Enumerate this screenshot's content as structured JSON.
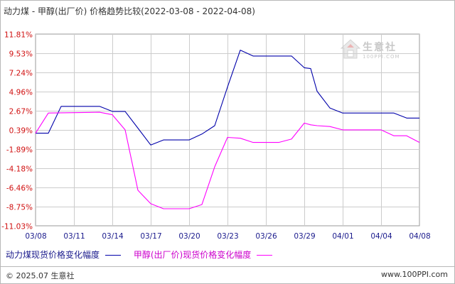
{
  "title": "动力煤 - 甲醇(出厂价) 价格趋势比较(2022-03-08 - 2022-04-08)",
  "colors": {
    "series1": "#0000aa",
    "series2": "#ff00ff",
    "ytick": "#d01010",
    "xtick": "#1a1a8c",
    "grid": "#cccccc"
  },
  "watermark": {
    "brand": "生意社",
    "sub": "100PPI.COM"
  },
  "footer": {
    "copyright": "© 2025.07 生意社",
    "site": "www.100PPI.com"
  },
  "chart_data": {
    "type": "line",
    "title": "动力煤 - 甲醇(出厂价) 价格趋势比较(2022-03-08 - 2022-04-08)",
    "xlabel": "",
    "ylabel": "",
    "ylim": [
      -11.03,
      11.81
    ],
    "yticks": [
      "11.81%",
      "9.53%",
      "7.24%",
      "4.96%",
      "2.67%",
      "0.39%",
      "-1.89%",
      "-4.18%",
      "-6.46%",
      "-8.75%",
      "-11.03%"
    ],
    "yticks_values": [
      11.81,
      9.53,
      7.24,
      4.96,
      2.67,
      0.39,
      -1.89,
      -4.18,
      -6.46,
      -8.75,
      -11.03
    ],
    "xticks": [
      "03/08",
      "03/11",
      "03/14",
      "03/17",
      "03/20",
      "03/23",
      "03/26",
      "03/29",
      "04/01",
      "04/04",
      "04/08"
    ],
    "xticks_values": [
      0,
      3,
      6,
      9,
      12,
      15,
      18,
      21,
      24,
      27,
      30
    ],
    "xlim": [
      0,
      30
    ],
    "grid": true,
    "legend_position": "bottom",
    "series": [
      {
        "name": "动力煤现货价格变化幅度",
        "points": [
          [
            0,
            0
          ],
          [
            1,
            0
          ],
          [
            2,
            3.2
          ],
          [
            5,
            3.2
          ],
          [
            6,
            2.6
          ],
          [
            7,
            2.6
          ],
          [
            8,
            0.6
          ],
          [
            9,
            -1.4
          ],
          [
            10,
            -0.8
          ],
          [
            12,
            -0.8
          ],
          [
            13,
            -0.1
          ],
          [
            14,
            0.9
          ],
          [
            15,
            5.5
          ],
          [
            16,
            9.9
          ],
          [
            17,
            9.2
          ],
          [
            20,
            9.2
          ],
          [
            21,
            7.8
          ],
          [
            21.5,
            7.7
          ],
          [
            22,
            5.0
          ],
          [
            23,
            3.0
          ],
          [
            24,
            2.4
          ],
          [
            28,
            2.4
          ],
          [
            29,
            1.8
          ],
          [
            30,
            1.8
          ]
        ]
      },
      {
        "name": "甲醇(出厂价)现货价格变化幅度",
        "points": [
          [
            0,
            0
          ],
          [
            1,
            2.4
          ],
          [
            5,
            2.5
          ],
          [
            6,
            2.2
          ],
          [
            7,
            0.4
          ],
          [
            8,
            -6.8
          ],
          [
            9,
            -8.4
          ],
          [
            10,
            -9.0
          ],
          [
            12,
            -9.0
          ],
          [
            13,
            -8.5
          ],
          [
            14,
            -4.0
          ],
          [
            15,
            -0.5
          ],
          [
            16,
            -0.6
          ],
          [
            17,
            -1.1
          ],
          [
            19,
            -1.1
          ],
          [
            20,
            -0.7
          ],
          [
            21,
            1.2
          ],
          [
            21.5,
            1.0
          ],
          [
            22,
            0.9
          ],
          [
            23,
            0.8
          ],
          [
            24,
            0.4
          ],
          [
            27,
            0.4
          ],
          [
            28,
            -0.3
          ],
          [
            29,
            -0.3
          ],
          [
            30,
            -1.1
          ]
        ]
      }
    ]
  }
}
